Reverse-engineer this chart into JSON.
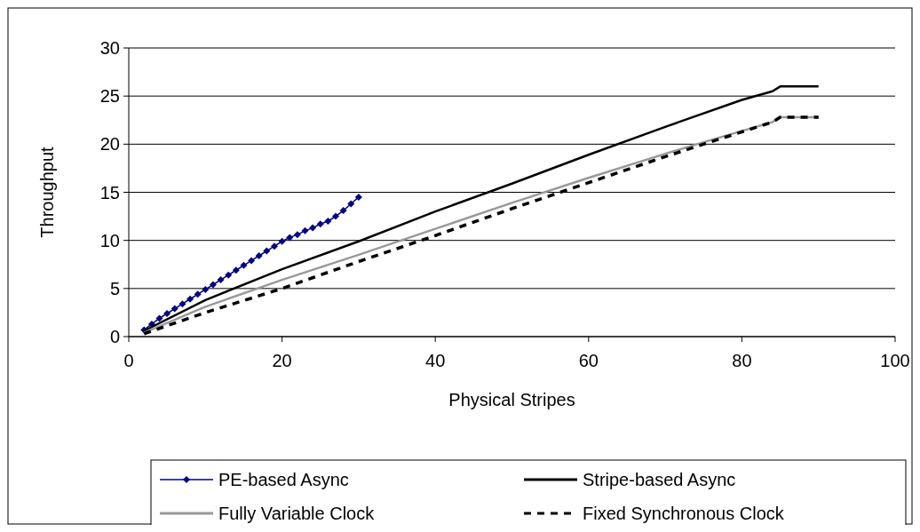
{
  "chart_data": {
    "type": "line",
    "xlabel": "Physical Stripes",
    "ylabel": "Throughput",
    "xlim": [
      0,
      100
    ],
    "xticks": [
      0,
      20,
      40,
      60,
      80,
      100
    ],
    "ylim": [
      0,
      30
    ],
    "yticks": [
      0,
      5,
      10,
      15,
      20,
      25,
      30
    ],
    "grid": "y",
    "legend": "bottom",
    "series": [
      {
        "name": "PE-based Async",
        "color": "#000080",
        "marker": "diamond",
        "line_style": "solid",
        "x": [
          2,
          3,
          4,
          5,
          6,
          7,
          8,
          9,
          10,
          11,
          12,
          13,
          14,
          15,
          16,
          17,
          18,
          19,
          20,
          21,
          22,
          23,
          24,
          25,
          26,
          27,
          28,
          29,
          30
        ],
        "values": [
          0.7,
          1.3,
          1.9,
          2.4,
          2.9,
          3.4,
          3.9,
          4.4,
          4.9,
          5.4,
          5.9,
          6.4,
          6.9,
          7.4,
          7.9,
          8.4,
          8.9,
          9.4,
          9.9,
          10.3,
          10.6,
          11.0,
          11.3,
          11.7,
          12.0,
          12.5,
          13.1,
          13.8,
          14.5
        ]
      },
      {
        "name": "Stripe-based Async",
        "color": "#000000",
        "marker": "none",
        "line_style": "solid",
        "x": [
          2,
          10,
          20,
          30,
          40,
          50,
          60,
          70,
          80,
          84,
          85,
          90
        ],
        "values": [
          0.6,
          3.8,
          7.0,
          9.9,
          13.0,
          15.9,
          18.9,
          21.8,
          24.6,
          25.5,
          26,
          26
        ]
      },
      {
        "name": "Fully Variable Clock",
        "color": "#999999",
        "marker": "none",
        "line_style": "solid",
        "x": [
          2,
          10,
          20,
          30,
          40,
          50,
          60,
          70,
          75,
          84,
          85,
          90
        ],
        "values": [
          0.4,
          3.1,
          5.9,
          8.5,
          11.2,
          13.9,
          16.5,
          19.0,
          20.2,
          22.3,
          22.8,
          22.8
        ]
      },
      {
        "name": "Fixed Synchronous Clock",
        "color": "#000000",
        "marker": "none",
        "line_style": "dashed",
        "x": [
          2,
          10,
          20,
          30,
          40,
          50,
          60,
          70,
          75,
          84,
          85,
          90
        ],
        "values": [
          0.3,
          2.5,
          5.0,
          7.8,
          10.5,
          13.3,
          16.0,
          18.7,
          20.0,
          22.3,
          22.8,
          22.8
        ]
      }
    ]
  }
}
